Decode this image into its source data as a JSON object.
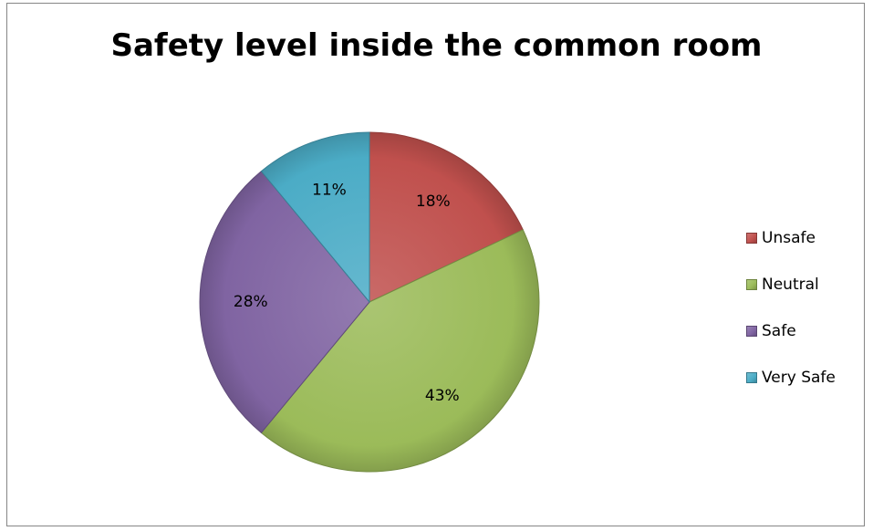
{
  "chart_data": {
    "type": "pie",
    "title": "Safety level inside the common room",
    "categories": [
      "Unsafe",
      "Neutral",
      "Safe",
      "Very Safe"
    ],
    "values": [
      18,
      43,
      28,
      11
    ],
    "labels": [
      "18%",
      "43%",
      "28%",
      "11%"
    ],
    "colors": [
      "#c0504d",
      "#9bbb59",
      "#8064a2",
      "#4bacc6"
    ],
    "legend_position": "right",
    "start_angle_deg": 0,
    "direction": "clockwise"
  }
}
